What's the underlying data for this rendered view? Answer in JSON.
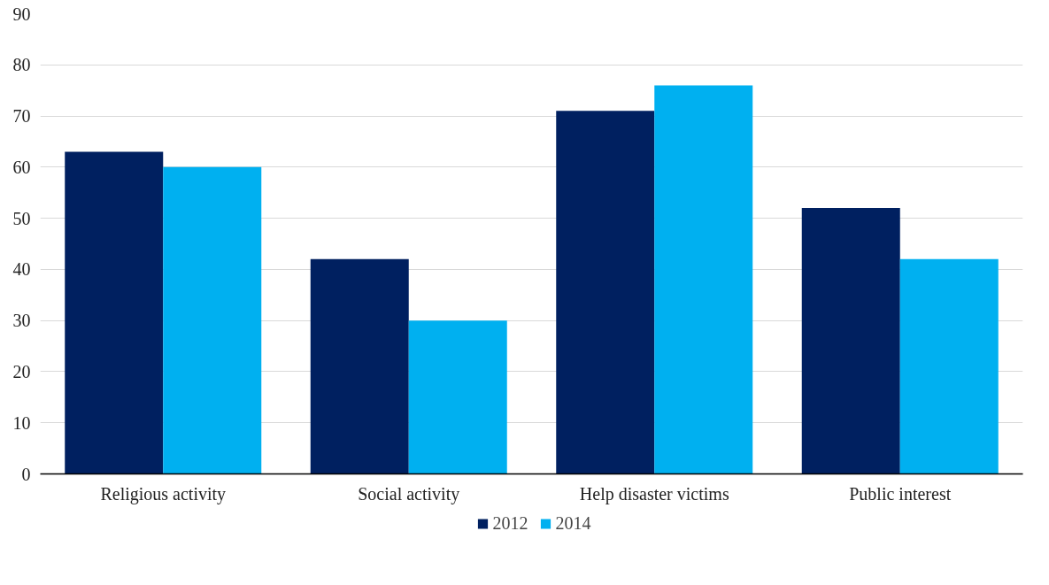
{
  "chart_data": {
    "type": "bar",
    "categories": [
      "Religious activity",
      "Social activity",
      "Help disaster victims",
      "Public interest"
    ],
    "series": [
      {
        "name": "2012",
        "color": "#002060",
        "values": [
          63,
          42,
          71,
          52
        ]
      },
      {
        "name": "2014",
        "color": "#00b0f0",
        "values": [
          60,
          30,
          76,
          42
        ]
      }
    ],
    "ylim": [
      0,
      90
    ],
    "yticks": [
      0,
      10,
      20,
      30,
      40,
      50,
      60,
      70,
      80,
      90
    ],
    "grid": "y",
    "legend": "bottom"
  }
}
